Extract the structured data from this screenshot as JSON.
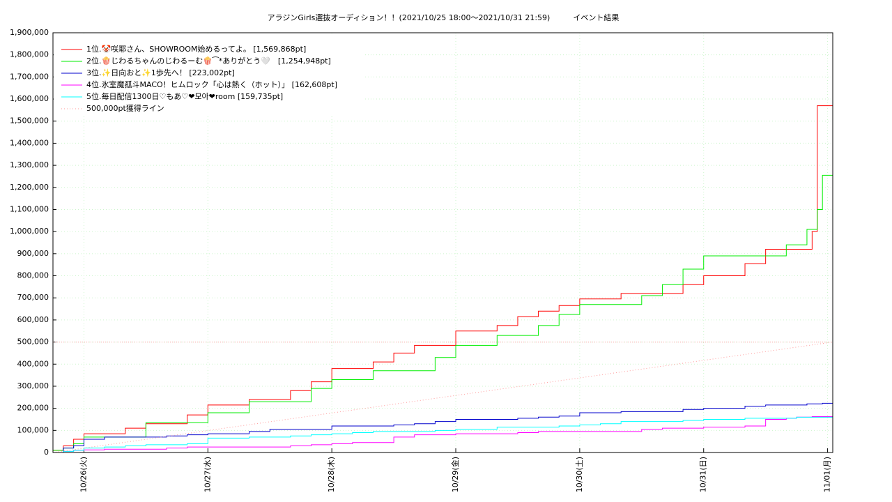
{
  "chart_data": {
    "type": "step-line",
    "title": "アラジンGirls選抜オーディション！！(2021/10/25 18:00〜2021/10/31 21:59)　　　イベント結果",
    "x": [
      18,
      20,
      22,
      24,
      28,
      32,
      36,
      40,
      44,
      48,
      52,
      56,
      60,
      64,
      68,
      72,
      76,
      80,
      84,
      88,
      92,
      96,
      100,
      104,
      108,
      112,
      116,
      120,
      124,
      128,
      132,
      136,
      140,
      144,
      148,
      152,
      156,
      160,
      162,
      164,
      165,
      166,
      167,
      169
    ],
    "series": [
      {
        "name": "1位.🤡咲耶さん、SHOWROOM始めるってよ。 [1,569,868pt]",
        "color": "#ff0000",
        "values": [
          10000,
          30000,
          60000,
          85000,
          85000,
          110000,
          130000,
          130000,
          170000,
          215000,
          215000,
          240000,
          240000,
          280000,
          320000,
          380000,
          380000,
          410000,
          450000,
          485000,
          485000,
          550000,
          550000,
          575000,
          615000,
          640000,
          665000,
          695000,
          695000,
          720000,
          720000,
          720000,
          760000,
          800000,
          800000,
          855000,
          920000,
          920000,
          920000,
          920000,
          1000000,
          1569868,
          1569868,
          1569868
        ]
      },
      {
        "name": "2位.🍿じわるちゃんのじわるーむ🍿⁀*ありがとう🤍　[1,254,948pt]",
        "color": "#00ee00",
        "values": [
          10000,
          20000,
          40000,
          70000,
          70000,
          70000,
          135000,
          135000,
          135000,
          180000,
          180000,
          230000,
          230000,
          230000,
          290000,
          330000,
          330000,
          370000,
          370000,
          370000,
          430000,
          485000,
          485000,
          530000,
          530000,
          575000,
          625000,
          670000,
          670000,
          670000,
          710000,
          760000,
          830000,
          890000,
          890000,
          890000,
          890000,
          940000,
          940000,
          1010000,
          1010000,
          1100000,
          1254948,
          1254948
        ]
      },
      {
        "name": "3位.✨日向おと✨1歩先へ！ [223,002pt]",
        "color": "#0000cc",
        "values": [
          0,
          20000,
          30000,
          60000,
          70000,
          70000,
          70000,
          75000,
          80000,
          85000,
          85000,
          95000,
          105000,
          105000,
          105000,
          120000,
          120000,
          120000,
          125000,
          130000,
          140000,
          150000,
          150000,
          150000,
          155000,
          160000,
          165000,
          180000,
          180000,
          185000,
          185000,
          185000,
          195000,
          200000,
          200000,
          210000,
          215000,
          215000,
          215000,
          220000,
          220000,
          220000,
          223002,
          223002
        ]
      },
      {
        "name": "4位.氷室魔孤斗MACO！ヒムロック「心は熱く（ホット）」 [162,608pt]",
        "color": "#ff00ff",
        "values": [
          0,
          5000,
          10000,
          12000,
          15000,
          15000,
          15000,
          20000,
          25000,
          25000,
          25000,
          25000,
          25000,
          30000,
          35000,
          40000,
          45000,
          45000,
          70000,
          80000,
          80000,
          85000,
          85000,
          85000,
          90000,
          95000,
          95000,
          95000,
          95000,
          95000,
          105000,
          110000,
          110000,
          115000,
          115000,
          120000,
          150000,
          155000,
          160000,
          160000,
          162608,
          162608,
          162608,
          162608
        ]
      },
      {
        "name": "5位.毎日配信1300日♡もあ♡❤모아❤room [159,735pt]",
        "color": "#00ffff",
        "values": [
          0,
          5000,
          10000,
          20000,
          25000,
          30000,
          35000,
          35000,
          40000,
          65000,
          65000,
          70000,
          70000,
          75000,
          80000,
          85000,
          90000,
          95000,
          95000,
          95000,
          100000,
          105000,
          105000,
          115000,
          115000,
          115000,
          120000,
          125000,
          130000,
          140000,
          140000,
          140000,
          145000,
          150000,
          150000,
          155000,
          155000,
          155000,
          159735,
          159735,
          159735,
          159735,
          159735,
          159735
        ]
      },
      {
        "name": "500,000pt獲得ライン",
        "color": "#ff9999",
        "dotted": true,
        "x": [
          18,
          169
        ],
        "values": [
          0,
          500000
        ]
      }
    ],
    "reference_line": 500000,
    "xlim": [
      18,
      169
    ],
    "xticks": [
      {
        "value": 24,
        "label": "10/26(火)"
      },
      {
        "value": 48,
        "label": "10/27(水)"
      },
      {
        "value": 72,
        "label": "10/28(木)"
      },
      {
        "value": 96,
        "label": "10/29(金)"
      },
      {
        "value": 120,
        "label": "10/30(土)"
      },
      {
        "value": 144,
        "label": "10/31(日)"
      },
      {
        "value": 168,
        "label": "11/01(月)"
      }
    ],
    "ylim": [
      0,
      1900000
    ],
    "yticks": [
      0,
      {
        "value": 100000,
        "label": "100,000"
      },
      {
        "value": 200000,
        "label": "200,000"
      },
      {
        "value": 300000,
        "label": "300,000"
      },
      {
        "value": 400000,
        "label": "400,000"
      },
      {
        "value": 500000,
        "label": "500,000"
      },
      {
        "value": 600000,
        "label": "600,000"
      },
      {
        "value": 700000,
        "label": "700,000"
      },
      {
        "value": 800000,
        "label": "800,000"
      },
      {
        "value": 900000,
        "label": "900,000"
      },
      {
        "value": 1000000,
        "label": "1,000,000"
      },
      {
        "value": 1100000,
        "label": "1,100,000"
      },
      {
        "value": 1200000,
        "label": "1,200,000"
      },
      {
        "value": 1300000,
        "label": "1,300,000"
      },
      {
        "value": 1400000,
        "label": "1,400,000"
      },
      {
        "value": 1500000,
        "label": "1,500,000"
      },
      {
        "value": 1600000,
        "label": "1,600,000"
      },
      {
        "value": 1700000,
        "label": "1,700,000"
      },
      {
        "value": 1800000,
        "label": "1,800,000"
      },
      {
        "value": 1900000,
        "label": "1,900,000"
      }
    ],
    "grid": true
  }
}
